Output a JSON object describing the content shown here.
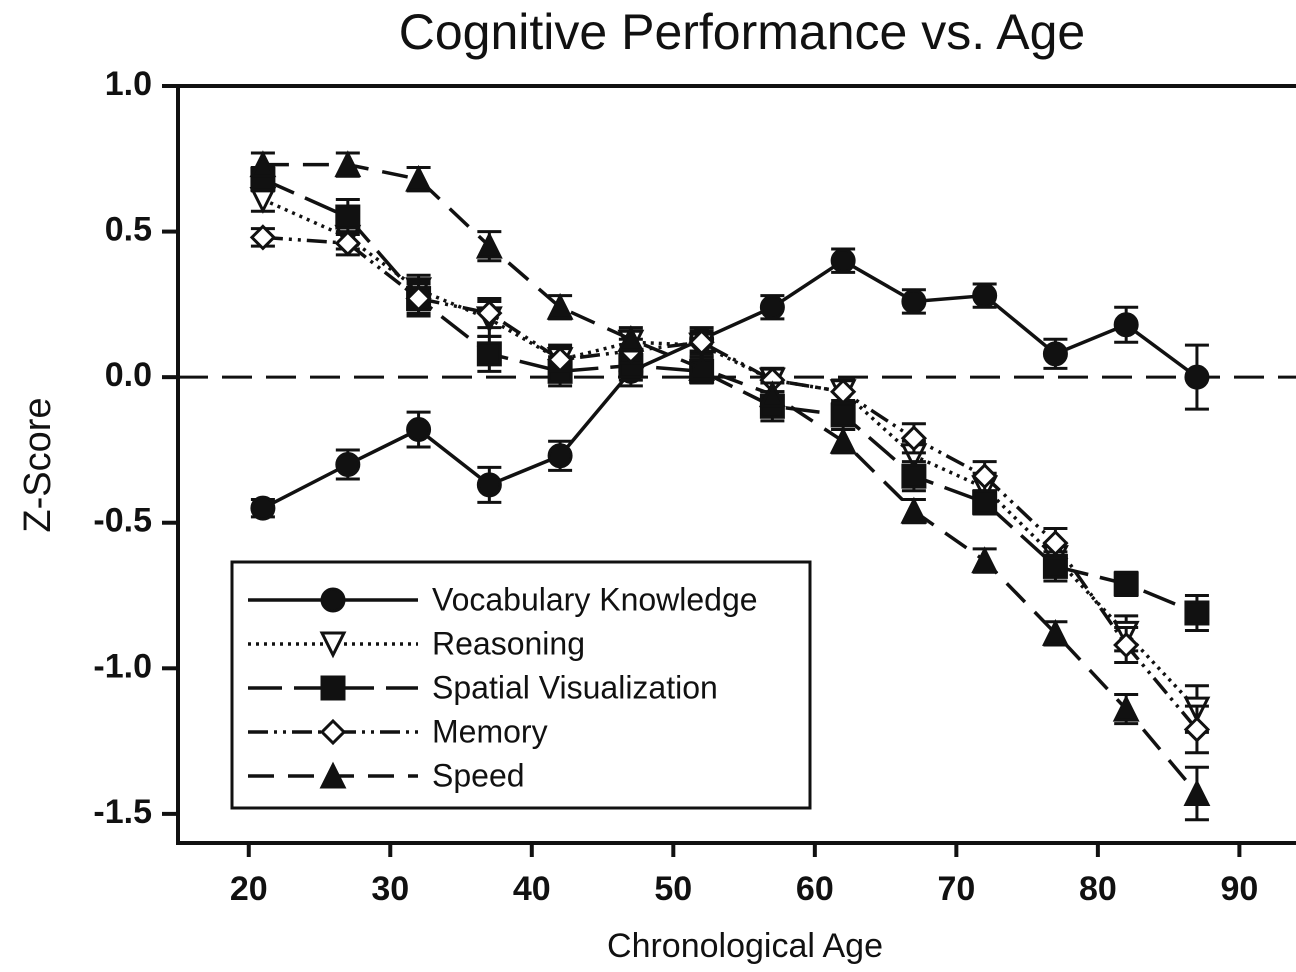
{
  "chart_data": {
    "type": "line",
    "title": "Cognitive Performance vs. Age",
    "xlabel": "Chronological Age",
    "ylabel": "Z-Score",
    "x": [
      21,
      27,
      32,
      37,
      42,
      47,
      52,
      57,
      62,
      67,
      72,
      77,
      82,
      87
    ],
    "xlim": [
      15,
      94
    ],
    "xticks": [
      20,
      30,
      40,
      50,
      60,
      70,
      80,
      90
    ],
    "ylim": [
      -1.6,
      1.0
    ],
    "yticks": [
      {
        "value": 1.0,
        "label": "1.0"
      },
      {
        "value": 0.5,
        "label": "0.5"
      },
      {
        "value": 0.0,
        "label": "0.0"
      },
      {
        "value": -0.5,
        "label": "-0.5"
      },
      {
        "value": -1.0,
        "label": "-1.0"
      },
      {
        "value": -1.5,
        "label": "-1.5"
      }
    ],
    "legend": "lower left",
    "series": [
      {
        "name": "Vocabulary Knowledge",
        "color": "#111111",
        "marker": "circle",
        "dash": "solid",
        "values": [
          -0.45,
          -0.3,
          -0.18,
          -0.37,
          -0.27,
          0.02,
          0.13,
          0.24,
          0.4,
          0.26,
          0.28,
          0.08,
          0.18,
          0.0
        ],
        "errors": [
          0.03,
          0.05,
          0.06,
          0.06,
          0.05,
          0.05,
          0.04,
          0.04,
          0.04,
          0.04,
          0.04,
          0.05,
          0.06,
          0.11
        ]
      },
      {
        "name": "Reasoning",
        "color": "#111111",
        "marker": "triangle-down-open",
        "dash": "dotted",
        "values": [
          0.61,
          0.48,
          0.3,
          0.2,
          0.06,
          0.12,
          0.11,
          -0.01,
          -0.05,
          -0.27,
          -0.38,
          -0.62,
          -0.88,
          -1.14
        ],
        "errors": [
          0.04,
          0.04,
          0.05,
          0.06,
          0.05,
          0.04,
          0.04,
          0.04,
          0.04,
          0.05,
          0.05,
          0.05,
          0.06,
          0.08
        ]
      },
      {
        "name": "Spatial Visualization",
        "color": "#111111",
        "marker": "square",
        "dash": "longdash",
        "values": [
          0.68,
          0.55,
          0.27,
          0.08,
          0.02,
          0.04,
          0.02,
          -0.1,
          -0.13,
          -0.34,
          -0.43,
          -0.65,
          -0.71,
          -0.81
        ],
        "errors": [
          0.04,
          0.06,
          0.06,
          0.06,
          0.05,
          0.05,
          0.04,
          0.05,
          0.05,
          0.05,
          0.04,
          0.05,
          0.04,
          0.06
        ]
      },
      {
        "name": "Memory",
        "color": "#111111",
        "marker": "diamond-open",
        "dash": "dashdotdot",
        "values": [
          0.48,
          0.46,
          0.27,
          0.22,
          0.06,
          0.09,
          0.12,
          -0.01,
          -0.05,
          -0.21,
          -0.34,
          -0.57,
          -0.92,
          -1.21
        ],
        "errors": [
          0.03,
          0.04,
          0.05,
          0.05,
          0.04,
          0.04,
          0.04,
          0.04,
          0.04,
          0.05,
          0.05,
          0.05,
          0.06,
          0.08
        ]
      },
      {
        "name": "Speed",
        "color": "#111111",
        "marker": "triangle",
        "dash": "dash",
        "values": [
          0.73,
          0.73,
          0.68,
          0.45,
          0.24,
          0.13,
          0.03,
          -0.06,
          -0.22,
          -0.46,
          -0.63,
          -0.88,
          -1.14,
          -1.43
        ],
        "errors": [
          0.04,
          0.04,
          0.04,
          0.05,
          0.04,
          0.04,
          0.04,
          0.04,
          0.04,
          0.04,
          0.04,
          0.04,
          0.05,
          0.09
        ]
      }
    ]
  }
}
